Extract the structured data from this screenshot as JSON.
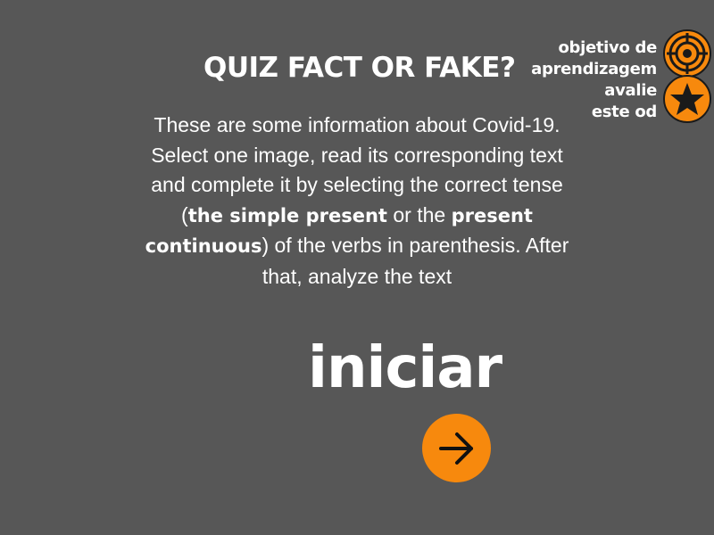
{
  "title": "QUIZ FACT OR FAKE?",
  "intro": {
    "line1": "These are some information about Covid-19.",
    "line2_a": "Select one image, read its corresponding text and complete it by selecting the correct tense (",
    "bold1": "the simple present",
    "line2_b": " or the ",
    "bold2": "present continuous",
    "line2_c": ") of the verbs in parenthesis. After that, analyze the text"
  },
  "side_links": {
    "objective": [
      "objetivo de",
      "aprendizagem"
    ],
    "evaluate": [
      "avalie",
      "este od"
    ]
  },
  "start_label": "iniciar",
  "icons": {
    "objective": "target-icon",
    "evaluate": "star-icon",
    "next": "arrow-right-icon"
  },
  "colors": {
    "background": "#575757",
    "accent": "#f7890d"
  }
}
